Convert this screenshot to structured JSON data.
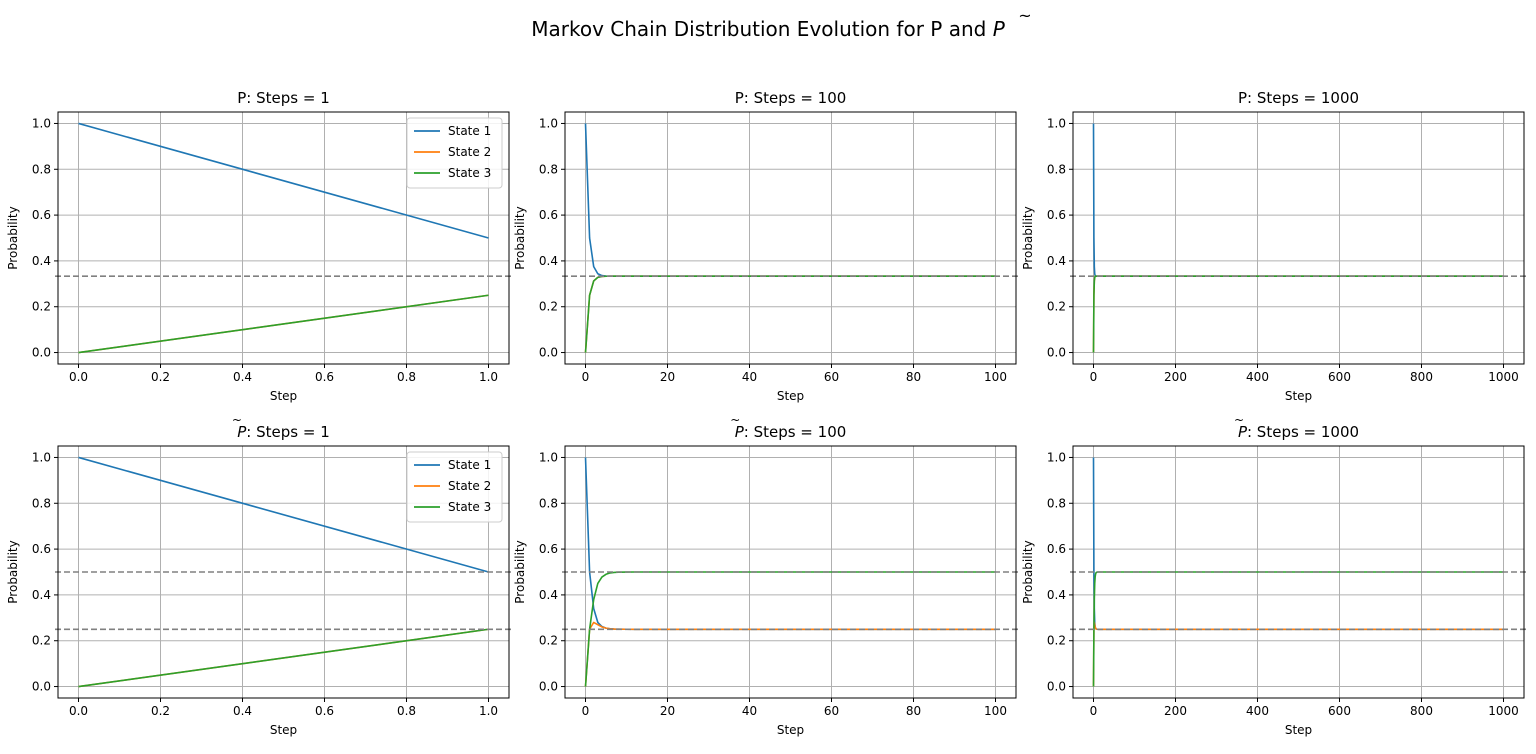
{
  "figure": {
    "title_prefix": "Markov Chain Distribution Evolution for P and ",
    "title_tilde": "~",
    "title_symbol": "P"
  },
  "colors": {
    "state1": "#1f77b4",
    "state2": "#ff7f0e",
    "state3": "#2ca02c",
    "reference": "#808080",
    "grid": "#b0b0b0"
  },
  "chart_data": [
    {
      "type": "line",
      "matrix": "P",
      "title_suffix": "Steps = 1",
      "xlabel": "Step",
      "ylabel": "Probability",
      "xlim": [
        -0.05,
        1.05
      ],
      "ylim": [
        -0.05,
        1.05
      ],
      "xticks": [
        0,
        0.2,
        0.4,
        0.6,
        0.8,
        1.0
      ],
      "xtick_labels": [
        "0.0",
        "0.2",
        "0.4",
        "0.6",
        "0.8",
        "1.0"
      ],
      "yticks": [
        0,
        0.2,
        0.4,
        0.6,
        0.8,
        1.0
      ],
      "ytick_labels": [
        "0.0",
        "0.2",
        "0.4",
        "0.6",
        "0.8",
        "1.0"
      ],
      "grid": true,
      "legend": "top-right",
      "reference_lines": [
        0.3333
      ],
      "series": [
        {
          "name": "State 1",
          "x": [
            0,
            1
          ],
          "values": [
            1.0,
            0.5
          ]
        },
        {
          "name": "State 2",
          "x": [
            0,
            1
          ],
          "values": [
            0.0,
            0.25
          ]
        },
        {
          "name": "State 3",
          "x": [
            0,
            1
          ],
          "values": [
            0.0,
            0.25
          ]
        }
      ]
    },
    {
      "type": "line",
      "matrix": "P",
      "title_suffix": "Steps = 100",
      "xlabel": "Step",
      "ylabel": "Probability",
      "xlim": [
        -5,
        105
      ],
      "ylim": [
        -0.05,
        1.05
      ],
      "xticks": [
        0,
        20,
        40,
        60,
        80,
        100
      ],
      "xtick_labels": [
        "0",
        "20",
        "40",
        "60",
        "80",
        "100"
      ],
      "yticks": [
        0,
        0.2,
        0.4,
        0.6,
        0.8,
        1.0
      ],
      "ytick_labels": [
        "0.0",
        "0.2",
        "0.4",
        "0.6",
        "0.8",
        "1.0"
      ],
      "grid": true,
      "legend": "none",
      "reference_lines": [
        0.3333
      ],
      "series": [
        {
          "name": "State 1",
          "x": [
            0,
            1,
            2,
            3,
            4,
            5,
            6,
            100
          ],
          "values": [
            1.0,
            0.5,
            0.375,
            0.344,
            0.336,
            0.334,
            0.3334,
            0.3333
          ]
        },
        {
          "name": "State 2",
          "x": [
            0,
            1,
            2,
            3,
            4,
            5,
            6,
            100
          ],
          "values": [
            0.0,
            0.25,
            0.3125,
            0.328,
            0.332,
            0.333,
            0.3333,
            0.3333
          ]
        },
        {
          "name": "State 3",
          "x": [
            0,
            1,
            2,
            3,
            4,
            5,
            6,
            100
          ],
          "values": [
            0.0,
            0.25,
            0.3125,
            0.328,
            0.332,
            0.333,
            0.3333,
            0.3333
          ]
        }
      ]
    },
    {
      "type": "line",
      "matrix": "P",
      "title_suffix": "Steps = 1000",
      "xlabel": "Step",
      "ylabel": "Probability",
      "xlim": [
        -50,
        1050
      ],
      "ylim": [
        -0.05,
        1.05
      ],
      "xticks": [
        0,
        200,
        400,
        600,
        800,
        1000
      ],
      "xtick_labels": [
        "0",
        "200",
        "400",
        "600",
        "800",
        "1000"
      ],
      "yticks": [
        0,
        0.2,
        0.4,
        0.6,
        0.8,
        1.0
      ],
      "ytick_labels": [
        "0.0",
        "0.2",
        "0.4",
        "0.6",
        "0.8",
        "1.0"
      ],
      "grid": true,
      "legend": "none",
      "reference_lines": [
        0.3333
      ],
      "series": [
        {
          "name": "State 1",
          "x": [
            0,
            1,
            2,
            3,
            4,
            5,
            6,
            1000
          ],
          "values": [
            1.0,
            0.5,
            0.375,
            0.344,
            0.336,
            0.334,
            0.3334,
            0.3333
          ]
        },
        {
          "name": "State 2",
          "x": [
            0,
            1,
            2,
            3,
            4,
            5,
            6,
            1000
          ],
          "values": [
            0.0,
            0.25,
            0.3125,
            0.328,
            0.332,
            0.333,
            0.3333,
            0.3333
          ]
        },
        {
          "name": "State 3",
          "x": [
            0,
            1,
            2,
            3,
            4,
            5,
            6,
            1000
          ],
          "values": [
            0.0,
            0.25,
            0.3125,
            0.328,
            0.332,
            0.333,
            0.3333,
            0.3333
          ]
        }
      ]
    },
    {
      "type": "line",
      "matrix": "P-tilde",
      "title_suffix": ": Steps = 1",
      "xlabel": "Step",
      "ylabel": "Probability",
      "xlim": [
        -0.05,
        1.05
      ],
      "ylim": [
        -0.05,
        1.05
      ],
      "xticks": [
        0,
        0.2,
        0.4,
        0.6,
        0.8,
        1.0
      ],
      "xtick_labels": [
        "0.0",
        "0.2",
        "0.4",
        "0.6",
        "0.8",
        "1.0"
      ],
      "yticks": [
        0,
        0.2,
        0.4,
        0.6,
        0.8,
        1.0
      ],
      "ytick_labels": [
        "0.0",
        "0.2",
        "0.4",
        "0.6",
        "0.8",
        "1.0"
      ],
      "grid": true,
      "legend": "top-right",
      "reference_lines": [
        0.5,
        0.25
      ],
      "series": [
        {
          "name": "State 1",
          "x": [
            0,
            1
          ],
          "values": [
            1.0,
            0.5
          ]
        },
        {
          "name": "State 2",
          "x": [
            0,
            1
          ],
          "values": [
            0.0,
            0.25
          ]
        },
        {
          "name": "State 3",
          "x": [
            0,
            1
          ],
          "values": [
            0.0,
            0.25
          ]
        }
      ]
    },
    {
      "type": "line",
      "matrix": "P-tilde",
      "title_suffix": ": Steps = 100",
      "xlabel": "Step",
      "ylabel": "Probability",
      "xlim": [
        -5,
        105
      ],
      "ylim": [
        -0.05,
        1.05
      ],
      "xticks": [
        0,
        20,
        40,
        60,
        80,
        100
      ],
      "xtick_labels": [
        "0",
        "20",
        "40",
        "60",
        "80",
        "100"
      ],
      "yticks": [
        0,
        0.2,
        0.4,
        0.6,
        0.8,
        1.0
      ],
      "ytick_labels": [
        "0.0",
        "0.2",
        "0.4",
        "0.6",
        "0.8",
        "1.0"
      ],
      "grid": true,
      "legend": "none",
      "reference_lines": [
        0.5,
        0.25
      ],
      "series": [
        {
          "name": "State 1",
          "x": [
            0,
            1,
            2,
            3,
            4,
            5,
            6,
            7,
            8,
            10,
            12,
            100
          ],
          "values": [
            1.0,
            0.5,
            0.34,
            0.28,
            0.262,
            0.255,
            0.252,
            0.251,
            0.2505,
            0.2501,
            0.25,
            0.25
          ]
        },
        {
          "name": "State 2",
          "x": [
            0,
            1,
            2,
            3,
            4,
            5,
            6,
            7,
            8,
            10,
            12,
            100
          ],
          "values": [
            0.0,
            0.25,
            0.28,
            0.27,
            0.26,
            0.255,
            0.252,
            0.251,
            0.2505,
            0.2501,
            0.25,
            0.25
          ]
        },
        {
          "name": "State 3",
          "x": [
            0,
            1,
            2,
            3,
            4,
            5,
            6,
            7,
            8,
            10,
            12,
            100
          ],
          "values": [
            0.0,
            0.25,
            0.38,
            0.45,
            0.478,
            0.49,
            0.496,
            0.498,
            0.499,
            0.4998,
            0.5,
            0.5
          ]
        }
      ]
    },
    {
      "type": "line",
      "matrix": "P-tilde",
      "title_suffix": ": Steps = 1000",
      "xlabel": "Step",
      "ylabel": "Probability",
      "xlim": [
        -50,
        1050
      ],
      "ylim": [
        -0.05,
        1.05
      ],
      "xticks": [
        0,
        200,
        400,
        600,
        800,
        1000
      ],
      "xtick_labels": [
        "0",
        "200",
        "400",
        "600",
        "800",
        "1000"
      ],
      "yticks": [
        0,
        0.2,
        0.4,
        0.6,
        0.8,
        1.0
      ],
      "ytick_labels": [
        "0.0",
        "0.2",
        "0.4",
        "0.6",
        "0.8",
        "1.0"
      ],
      "grid": true,
      "legend": "none",
      "reference_lines": [
        0.5,
        0.25
      ],
      "series": [
        {
          "name": "State 1",
          "x": [
            0,
            1,
            2,
            3,
            4,
            5,
            6,
            7,
            8,
            10,
            12,
            1000
          ],
          "values": [
            1.0,
            0.5,
            0.34,
            0.28,
            0.262,
            0.255,
            0.252,
            0.251,
            0.2505,
            0.2501,
            0.25,
            0.25
          ]
        },
        {
          "name": "State 2",
          "x": [
            0,
            1,
            2,
            3,
            4,
            5,
            6,
            7,
            8,
            10,
            12,
            1000
          ],
          "values": [
            0.0,
            0.25,
            0.28,
            0.27,
            0.26,
            0.255,
            0.252,
            0.251,
            0.2505,
            0.2501,
            0.25,
            0.25
          ]
        },
        {
          "name": "State 3",
          "x": [
            0,
            1,
            2,
            3,
            4,
            5,
            6,
            7,
            8,
            10,
            12,
            1000
          ],
          "values": [
            0.0,
            0.25,
            0.38,
            0.45,
            0.478,
            0.49,
            0.496,
            0.498,
            0.499,
            0.4998,
            0.5,
            0.5
          ]
        }
      ]
    }
  ]
}
